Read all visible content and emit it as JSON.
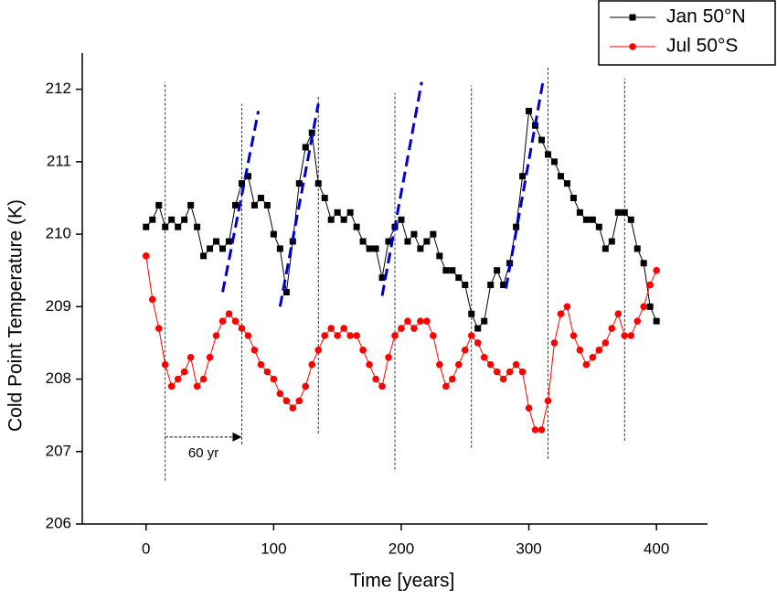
{
  "chart_data": {
    "type": "line",
    "xlabel": "Time [years]",
    "ylabel": "Cold Point Temperature  (K)",
    "x": [
      0,
      5,
      10,
      15,
      20,
      25,
      30,
      35,
      40,
      45,
      50,
      55,
      60,
      65,
      70,
      75,
      80,
      85,
      90,
      95,
      100,
      105,
      110,
      115,
      120,
      125,
      130,
      135,
      140,
      145,
      150,
      155,
      160,
      165,
      170,
      175,
      180,
      185,
      190,
      195,
      200,
      205,
      210,
      215,
      220,
      225,
      230,
      235,
      240,
      245,
      250,
      255,
      260,
      265,
      270,
      275,
      280,
      285,
      290,
      295,
      300,
      305,
      310,
      315,
      320,
      325,
      330,
      335,
      340,
      345,
      350,
      355,
      360,
      365,
      370,
      375,
      380,
      385,
      390,
      395,
      400
    ],
    "series": [
      {
        "name": "Jan 50°N",
        "color": "#000000",
        "marker": "square",
        "values": [
          210.1,
          210.2,
          210.4,
          210.1,
          210.2,
          210.1,
          210.2,
          210.4,
          210.1,
          209.7,
          209.8,
          209.9,
          209.8,
          209.9,
          210.4,
          210.7,
          210.8,
          210.4,
          210.5,
          210.4,
          210.0,
          209.8,
          209.2,
          209.9,
          210.7,
          211.2,
          211.4,
          210.7,
          210.5,
          210.2,
          210.3,
          210.2,
          210.3,
          210.1,
          209.9,
          209.8,
          209.8,
          209.4,
          209.9,
          210.1,
          210.2,
          209.9,
          210.0,
          209.8,
          209.9,
          210.0,
          209.7,
          209.5,
          209.5,
          209.4,
          209.3,
          208.9,
          208.7,
          208.8,
          209.3,
          209.5,
          209.3,
          209.6,
          210.1,
          210.8,
          211.7,
          211.5,
          211.3,
          211.1,
          211.0,
          210.8,
          210.7,
          210.5,
          210.3,
          210.2,
          210.2,
          210.1,
          209.8,
          209.9,
          210.3,
          210.3,
          210.2,
          209.8,
          209.6,
          209.0,
          208.8
        ]
      },
      {
        "name": "Jul 50°S",
        "color": "#ff0000",
        "marker": "circle",
        "values": [
          209.7,
          209.1,
          208.7,
          208.2,
          207.9,
          208.0,
          208.1,
          208.3,
          207.9,
          208.0,
          208.3,
          208.6,
          208.8,
          208.9,
          208.8,
          208.7,
          208.6,
          208.4,
          208.2,
          208.1,
          208.0,
          207.8,
          207.7,
          207.6,
          207.7,
          207.9,
          208.2,
          208.4,
          208.6,
          208.7,
          208.6,
          208.7,
          208.6,
          208.6,
          208.4,
          208.2,
          208.0,
          207.9,
          208.3,
          208.6,
          208.7,
          208.8,
          208.7,
          208.8,
          208.8,
          208.6,
          208.2,
          207.9,
          208.0,
          208.2,
          208.4,
          208.6,
          208.5,
          208.3,
          208.2,
          208.1,
          208.0,
          208.1,
          208.2,
          208.1,
          207.6,
          207.3,
          207.3,
          207.7,
          208.5,
          208.9,
          209.0,
          208.6,
          208.4,
          208.2,
          208.3,
          208.4,
          208.5,
          208.7,
          208.9,
          208.6,
          208.6,
          208.8,
          209.0,
          209.3,
          209.5
        ]
      }
    ],
    "xlim": [
      -50,
      440
    ],
    "ylim": [
      206,
      212.5
    ],
    "xticks": [
      0,
      100,
      200,
      300,
      400
    ],
    "yticks": [
      206,
      207,
      208,
      209,
      210,
      211,
      212
    ],
    "reference_lines": [
      {
        "x": 15,
        "y": [
          206.6,
          212.1
        ]
      },
      {
        "x": 75,
        "y": [
          207.1,
          211.8
        ]
      },
      {
        "x": 135,
        "y": [
          207.25,
          211.9
        ]
      },
      {
        "x": 195,
        "y": [
          206.75,
          211.95
        ]
      },
      {
        "x": 255,
        "y": [
          207.05,
          212.05
        ]
      },
      {
        "x": 315,
        "y": [
          206.9,
          212.3
        ]
      },
      {
        "x": 375,
        "y": [
          207.15,
          212.15
        ]
      }
    ],
    "trend_lines": [
      {
        "x": [
          60,
          88
        ],
        "y": [
          209.2,
          211.7
        ]
      },
      {
        "x": [
          105,
          135
        ],
        "y": [
          209.0,
          211.8
        ]
      },
      {
        "x": [
          185,
          216
        ],
        "y": [
          209.15,
          212.1
        ]
      },
      {
        "x": [
          282,
          311
        ],
        "y": [
          209.25,
          212.1
        ]
      }
    ],
    "trend_color": "#0000cc",
    "arrow": {
      "x": [
        15,
        75
      ],
      "y": 207.2
    },
    "annotation": {
      "text": "60 yr",
      "x": 45,
      "y": 206.97
    },
    "legend": "top-right"
  }
}
